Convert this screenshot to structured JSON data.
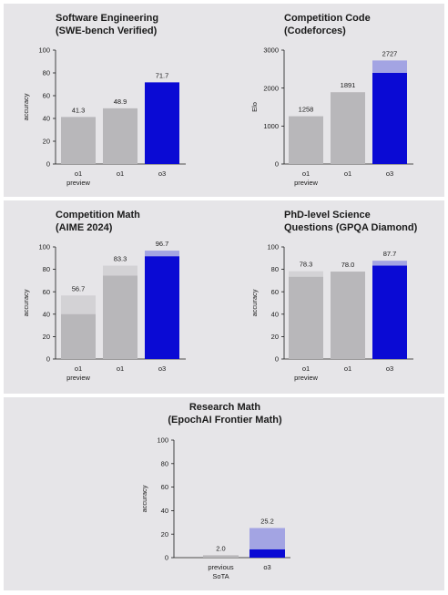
{
  "chart_data": [
    {
      "type": "bar",
      "title_lines": [
        "Software Engineering",
        "(SWE-bench Verified)"
      ],
      "ylabel": "accuracy",
      "ylim": [
        0,
        100
      ],
      "yticks": [
        0,
        20,
        40,
        60,
        80,
        100
      ],
      "categories": [
        [
          "o1",
          "preview"
        ],
        [
          "o1"
        ],
        [
          "o3"
        ]
      ],
      "values": [
        41.3,
        48.9,
        71.7
      ],
      "base_values": [
        null,
        null,
        null
      ],
      "value_labels": [
        "41.3",
        "48.9",
        "71.7"
      ],
      "highlight_index": 2
    },
    {
      "type": "bar",
      "title_lines": [
        "Competition Code",
        "(Codeforces)"
      ],
      "ylabel": "Elo",
      "ylim": [
        0,
        3000
      ],
      "yticks": [
        0,
        1000,
        2000,
        3000
      ],
      "categories": [
        [
          "o1",
          "preview"
        ],
        [
          "o1"
        ],
        [
          "o3"
        ]
      ],
      "values": [
        1258,
        1891,
        2727
      ],
      "base_values": [
        null,
        null,
        2400
      ],
      "value_labels": [
        "1258",
        "1891",
        "2727"
      ],
      "highlight_index": 2
    },
    {
      "type": "bar",
      "title_lines": [
        "Competition Math",
        "(AIME 2024)"
      ],
      "ylabel": "accuracy",
      "ylim": [
        0,
        100
      ],
      "yticks": [
        0,
        20,
        40,
        60,
        80,
        100
      ],
      "categories": [
        [
          "o1",
          "preview"
        ],
        [
          "o1"
        ],
        [
          "o3"
        ]
      ],
      "values": [
        56.7,
        83.3,
        96.7
      ],
      "base_values": [
        40,
        74.4,
        91.6
      ],
      "value_labels": [
        "56.7",
        "83.3",
        "96.7"
      ],
      "highlight_index": 2
    },
    {
      "type": "bar",
      "title_lines": [
        "PhD-level Science",
        "Questions (GPQA Diamond)"
      ],
      "ylabel": "accuracy",
      "ylim": [
        0,
        100
      ],
      "yticks": [
        0,
        20,
        40,
        60,
        80,
        100
      ],
      "categories": [
        [
          "o1",
          "preview"
        ],
        [
          "o1"
        ],
        [
          "o3"
        ]
      ],
      "values": [
        78.3,
        78.0,
        87.7
      ],
      "base_values": [
        73.3,
        null,
        83.3
      ],
      "value_labels": [
        "78.3",
        "78.0",
        "87.7"
      ],
      "highlight_index": 2
    },
    {
      "type": "bar",
      "title_lines": [
        "Research Math",
        "(EpochAI Frontier Math)"
      ],
      "ylabel": "accuracy",
      "ylim": [
        0,
        100
      ],
      "yticks": [
        0,
        20,
        40,
        60,
        80,
        100
      ],
      "categories": [
        [
          "previous",
          "SoTA"
        ],
        [
          "o3"
        ]
      ],
      "values": [
        2.0,
        25.2
      ],
      "base_values": [
        null,
        7
      ],
      "value_labels": [
        "2.0",
        "25.2"
      ],
      "highlight_index": 1
    }
  ],
  "colors": {
    "gray_bar": "#b8b7ba",
    "gray_bar_light": "#d3d2d5",
    "highlight": "#0a0ad4",
    "highlight_light": "#a3a4e3",
    "axis": "#1a1a1a",
    "panel_bg": "#e6e5e8"
  }
}
